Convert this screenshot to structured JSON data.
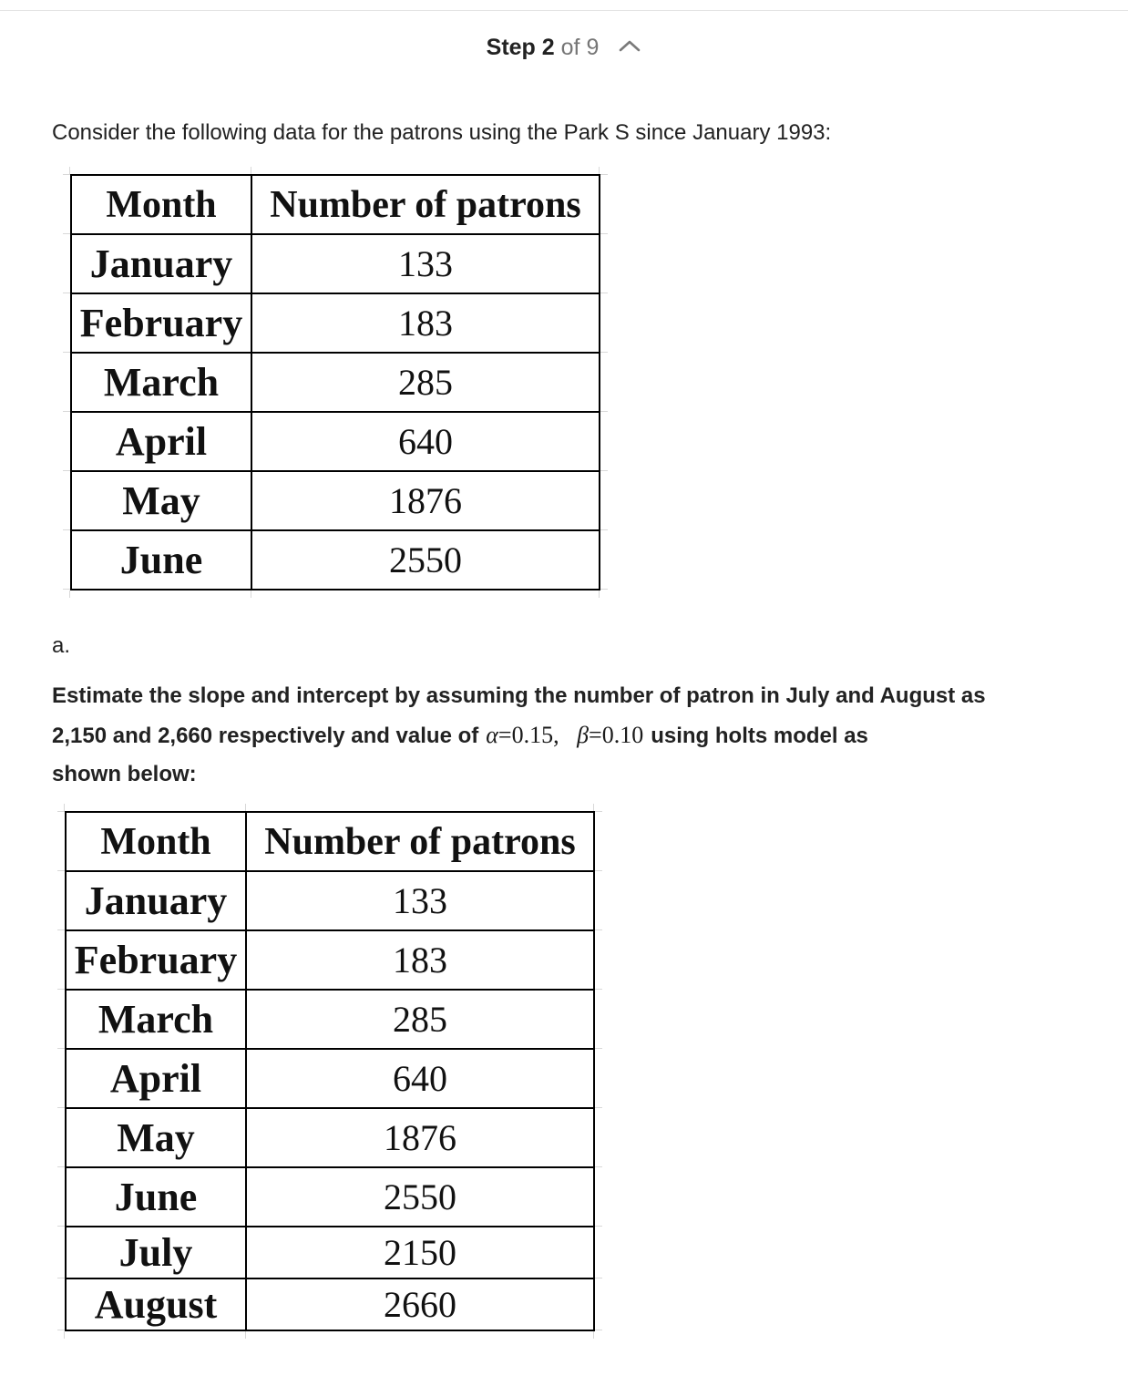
{
  "step": {
    "word": "Step",
    "current": "2",
    "of": "of",
    "total": "9"
  },
  "intro_text": "Consider the following data for the patrons using the Park S since January 1993:",
  "table1": {
    "headers": [
      "Month",
      "Number of patrons"
    ],
    "rows": [
      [
        "January",
        "133"
      ],
      [
        "February",
        "183"
      ],
      [
        "March",
        "285"
      ],
      [
        "April",
        "640"
      ],
      [
        "May",
        "1876"
      ],
      [
        "June",
        "2550"
      ]
    ]
  },
  "part_label": "a.",
  "question": {
    "line1": "Estimate the slope and intercept by assuming the number of patron in July and August as",
    "line2_start": "2,150 and 2,660 respectively and value of",
    "alpha_symbol": "α",
    "alpha_value": "=0.15,",
    "beta_symbol": "β",
    "beta_value": "=0.10",
    "line2_end": "using holts model as",
    "line3": "shown below:"
  },
  "table2": {
    "headers": [
      "Month",
      "Number of patrons"
    ],
    "rows": [
      [
        "January",
        "133"
      ],
      [
        "February",
        "183"
      ],
      [
        "March",
        "285"
      ],
      [
        "April",
        "640"
      ],
      [
        "May",
        "1876"
      ],
      [
        "June",
        "2550"
      ],
      [
        "July",
        "2150"
      ],
      [
        "August",
        "2660"
      ]
    ]
  },
  "icons": {
    "collapse": "chevron-up-icon"
  },
  "colors": {
    "text": "#222222",
    "muted": "#767676",
    "table_border": "#000000"
  }
}
